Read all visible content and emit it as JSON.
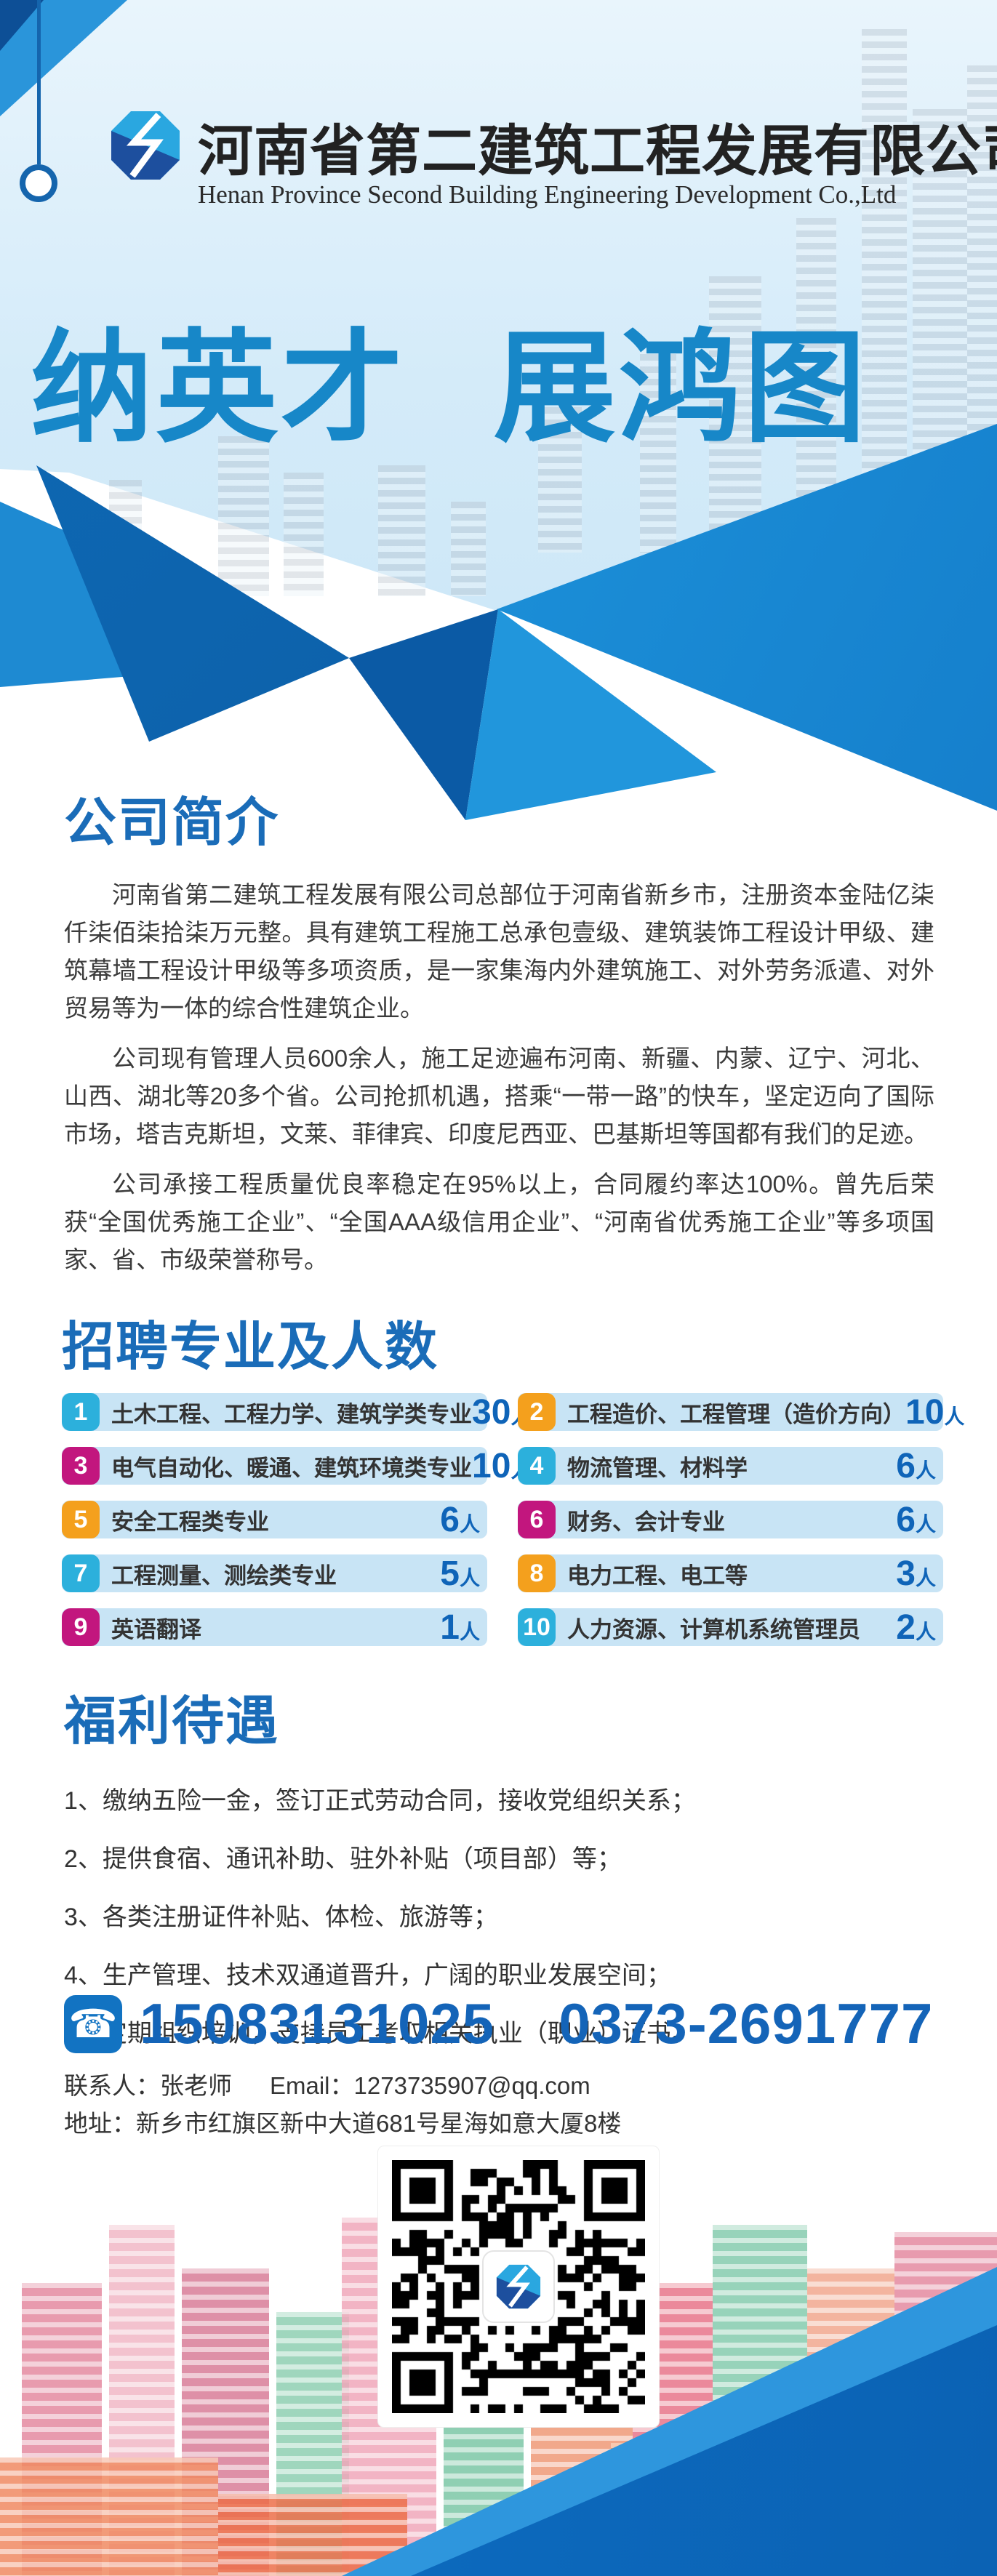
{
  "header": {
    "company_name_zh": "河南省第二建筑工程发展有限公司",
    "company_name_en": "Henan Province Second Building Engineering Development Co.,Ltd"
  },
  "hero": {
    "title": "纳英才 展鸿图"
  },
  "about": {
    "heading": "公司简介",
    "paragraphs": [
      "河南省第二建筑工程发展有限公司总部位于河南省新乡市，注册资本金陆亿柒仟柒佰柒拾柒万元整。具有建筑工程施工总承包壹级、建筑装饰工程设计甲级、建筑幕墙工程设计甲级等多项资质，是一家集海内外建筑施工、对外劳务派遣、对外贸易等为一体的综合性建筑企业。",
      "公司现有管理人员600余人，施工足迹遍布河南、新疆、内蒙、辽宁、河北、山西、湖北等20多个省。公司抢抓机遇，搭乘“一带一路”的快车，坚定迈向了国际市场，塔吉克斯坦，文莱、菲律宾、印度尼西亚、巴基斯坦等国都有我们的足迹。",
      "公司承接工程质量优良率稳定在95%以上，合同履约率达100%。曾先后荣获“全国优秀施工企业”、“全国AAA级信用企业”、“河南省优秀施工企业”等多项国家、省、市级荣誉称号。"
    ]
  },
  "recruit": {
    "heading": "招聘专业及人数",
    "count_suffix": "人",
    "positions": [
      {
        "num": "1",
        "major": "土木工程、工程力学、建筑学类专业",
        "count": "30"
      },
      {
        "num": "2",
        "major": "工程造价、工程管理（造价方向）",
        "count": "10"
      },
      {
        "num": "3",
        "major": "电气自动化、暖通、建筑环境类专业",
        "count": "10"
      },
      {
        "num": "4",
        "major": "物流管理、材料学",
        "count": "6"
      },
      {
        "num": "5",
        "major": "安全工程类专业",
        "count": "6"
      },
      {
        "num": "6",
        "major": "财务、会计专业",
        "count": "6"
      },
      {
        "num": "7",
        "major": "工程测量、测绘类专业",
        "count": "5"
      },
      {
        "num": "8",
        "major": "电力工程、电工等",
        "count": "3"
      },
      {
        "num": "9",
        "major": "英语翻译",
        "count": "1"
      },
      {
        "num": "10",
        "major": "人力资源、计算机系统管理员",
        "count": "2"
      }
    ]
  },
  "benefits": {
    "heading": "福利待遇",
    "items": [
      "1、缴纳五险一金，签订正式劳动合同，接收党组织关系；",
      "2、提供食宿、通讯补助、驻外补贴（项目部）等；",
      "3、各类注册证件补贴、体检、旅游等；",
      "4、生产管理、技术双通道晋升，广阔的职业发展空间；",
      "5、定期组织培训，支持员工考取相关执业（职业）证书。"
    ]
  },
  "contact": {
    "phone_mobile": "15083131025",
    "phone_landline": "0373-2691777",
    "person_label": "联系人：",
    "person": "张老师",
    "email_label": "Email：",
    "email": "1273735907@qq.com",
    "address_label": "地址：",
    "address": "新乡市红旗区新中大道681号星海如意大厦8楼"
  },
  "icons": {
    "phone_icon": "phone-icon",
    "logo": "company-logo-mark",
    "qr": "wechat-qr-code"
  },
  "colors": {
    "title_blue": "#1787c8",
    "heading_blue": "#1a6cb8",
    "row_bg": "#c8e4f5",
    "badge_cyan": "#2cb0dc",
    "badge_orange": "#f4a01d",
    "badge_magenta": "#c2167e",
    "count_blue": "#0f64b8",
    "ribbon_blue": "#0d74ca",
    "logo_light_blue": "#2aa7e0",
    "logo_dark_blue": "#1d4f9e"
  }
}
